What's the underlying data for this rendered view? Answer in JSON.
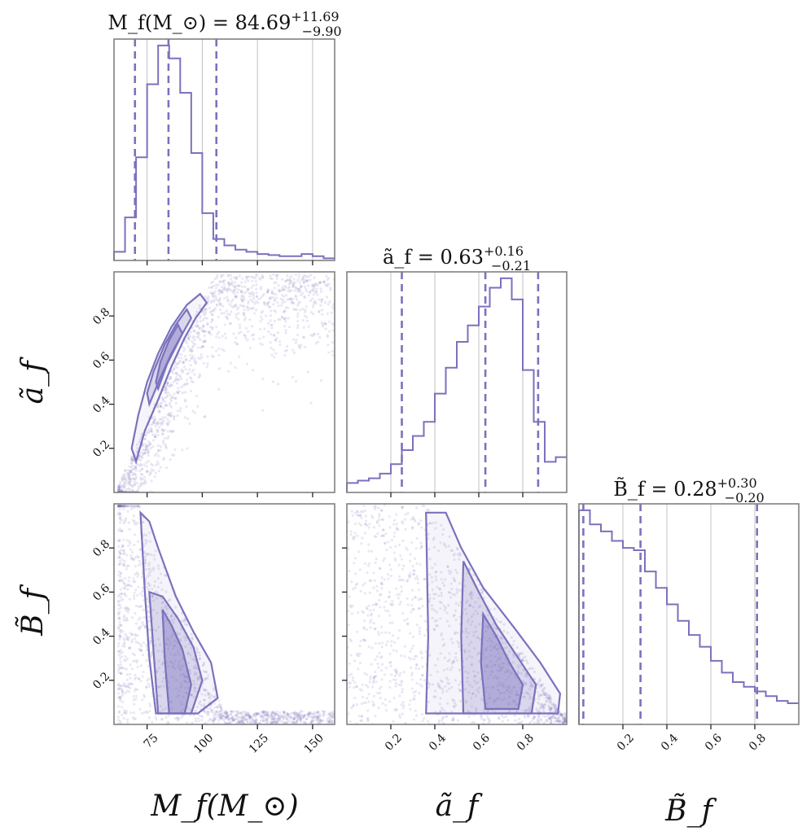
{
  "chart_data": {
    "type": "corner",
    "color": "#7a72bd",
    "parameters": [
      {
        "key": "Mf",
        "label": "M_f(M_⊙)",
        "range": [
          60,
          160
        ],
        "ticks": [
          75,
          100,
          125,
          150
        ]
      },
      {
        "key": "af",
        "label": "ã_f",
        "range": [
          0.0,
          1.0
        ],
        "ticks": [
          0.2,
          0.4,
          0.6,
          0.8
        ]
      },
      {
        "key": "Bf",
        "label": "B̃_f",
        "range": [
          0.0,
          1.0
        ],
        "ticks": [
          0.2,
          0.4,
          0.6,
          0.8
        ]
      }
    ],
    "titles": [
      {
        "prefix": "M_f(M_⊙) = ",
        "median": "84.69",
        "plus": "+11.69",
        "minus": "−9.90"
      },
      {
        "prefix": "ã_f = ",
        "median": "0.63",
        "plus": "+0.16",
        "minus": "−0.21"
      },
      {
        "prefix": "B̃_f = ",
        "median": "0.28",
        "plus": "+0.30",
        "minus": "−0.20"
      }
    ],
    "quantiles": [
      [
        69.5,
        84.7,
        106.4
      ],
      [
        0.25,
        0.63,
        0.87
      ],
      [
        0.02,
        0.28,
        0.81
      ]
    ],
    "histograms": [
      {
        "bins": [
          60,
          65,
          70,
          75,
          80,
          85,
          90,
          95,
          100,
          105,
          110,
          115,
          120,
          125,
          130,
          135,
          140,
          145,
          150,
          155,
          160
        ],
        "values": [
          0.04,
          0.2,
          0.48,
          0.82,
          1.0,
          0.94,
          0.78,
          0.5,
          0.22,
          0.1,
          0.07,
          0.05,
          0.04,
          0.03,
          0.025,
          0.02,
          0.02,
          0.03,
          0.02,
          0.01
        ]
      },
      {
        "bins": [
          0.0,
          0.05,
          0.1,
          0.15,
          0.2,
          0.25,
          0.3,
          0.35,
          0.4,
          0.45,
          0.5,
          0.55,
          0.6,
          0.65,
          0.7,
          0.75,
          0.8,
          0.85,
          0.9,
          0.95,
          1.0
        ],
        "values": [
          0.04,
          0.05,
          0.06,
          0.08,
          0.12,
          0.18,
          0.24,
          0.3,
          0.42,
          0.53,
          0.64,
          0.71,
          0.79,
          0.87,
          0.91,
          0.82,
          0.52,
          0.3,
          0.13,
          0.15
        ]
      },
      {
        "bins": [
          0.0,
          0.05,
          0.1,
          0.15,
          0.2,
          0.25,
          0.3,
          0.35,
          0.4,
          0.45,
          0.5,
          0.55,
          0.6,
          0.65,
          0.7,
          0.75,
          0.8,
          0.85,
          0.9,
          0.95,
          1.0
        ],
        "values": [
          0.91,
          0.85,
          0.82,
          0.78,
          0.75,
          0.74,
          0.65,
          0.58,
          0.51,
          0.44,
          0.38,
          0.33,
          0.27,
          0.22,
          0.18,
          0.16,
          0.14,
          0.12,
          0.1,
          0.09
        ]
      }
    ],
    "pairs": [
      {
        "x": "Mf",
        "y": "af",
        "contours": [
          [
            [
              70,
              0.14
            ],
            [
              74,
              0.28
            ],
            [
              80,
              0.42
            ],
            [
              86,
              0.57
            ],
            [
              92,
              0.7
            ],
            [
              97,
              0.79
            ],
            [
              102,
              0.86
            ],
            [
              99,
              0.9
            ],
            [
              93,
              0.85
            ],
            [
              86,
              0.75
            ],
            [
              80,
              0.63
            ],
            [
              75,
              0.5
            ],
            [
              71,
              0.35
            ],
            [
              68,
              0.2
            ]
          ],
          [
            [
              76,
              0.4
            ],
            [
              81,
              0.52
            ],
            [
              86,
              0.63
            ],
            [
              91,
              0.72
            ],
            [
              95,
              0.79
            ],
            [
              93,
              0.83
            ],
            [
              88,
              0.76
            ],
            [
              83,
              0.67
            ],
            [
              78,
              0.55
            ],
            [
              75,
              0.45
            ]
          ],
          [
            [
              80,
              0.47
            ],
            [
              84,
              0.58
            ],
            [
              88,
              0.66
            ],
            [
              91,
              0.72
            ],
            [
              89,
              0.76
            ],
            [
              85,
              0.69
            ],
            [
              81,
              0.59
            ],
            [
              79,
              0.5
            ]
          ]
        ]
      },
      {
        "x": "Mf",
        "y": "Bf",
        "contours": [
          [
            [
              72,
              0.96
            ],
            [
              74,
              0.6
            ],
            [
              76,
              0.3
            ],
            [
              79,
              0.05
            ],
            [
              98,
              0.05
            ],
            [
              107,
              0.12
            ],
            [
              104,
              0.28
            ],
            [
              96,
              0.42
            ],
            [
              88,
              0.58
            ],
            [
              80,
              0.8
            ],
            [
              76,
              0.92
            ]
          ],
          [
            [
              76,
              0.6
            ],
            [
              78,
              0.32
            ],
            [
              80,
              0.05
            ],
            [
              95,
              0.05
            ],
            [
              100,
              0.2
            ],
            [
              96,
              0.35
            ],
            [
              89,
              0.48
            ],
            [
              82,
              0.58
            ]
          ],
          [
            [
              82,
              0.52
            ],
            [
              83,
              0.3
            ],
            [
              85,
              0.05
            ],
            [
              92,
              0.05
            ],
            [
              95,
              0.18
            ],
            [
              91,
              0.34
            ],
            [
              86,
              0.45
            ]
          ]
        ]
      },
      {
        "x": "af",
        "y": "Bf",
        "contours": [
          [
            [
              0.36,
              0.96
            ],
            [
              0.37,
              0.4
            ],
            [
              0.36,
              0.05
            ],
            [
              0.96,
              0.05
            ],
            [
              0.97,
              0.14
            ],
            [
              0.88,
              0.28
            ],
            [
              0.76,
              0.44
            ],
            [
              0.62,
              0.62
            ],
            [
              0.52,
              0.8
            ],
            [
              0.45,
              0.96
            ]
          ],
          [
            [
              0.53,
              0.74
            ],
            [
              0.52,
              0.4
            ],
            [
              0.53,
              0.05
            ],
            [
              0.84,
              0.05
            ],
            [
              0.86,
              0.18
            ],
            [
              0.78,
              0.3
            ],
            [
              0.68,
              0.45
            ],
            [
              0.6,
              0.6
            ]
          ],
          [
            [
              0.62,
              0.5
            ],
            [
              0.61,
              0.28
            ],
            [
              0.63,
              0.07
            ],
            [
              0.78,
              0.07
            ],
            [
              0.8,
              0.18
            ],
            [
              0.74,
              0.28
            ],
            [
              0.68,
              0.4
            ]
          ]
        ]
      }
    ]
  }
}
